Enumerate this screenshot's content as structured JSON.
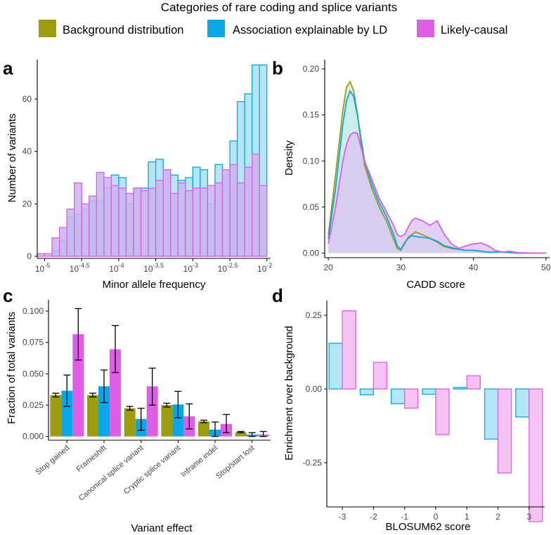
{
  "legend": {
    "title": "Categories of rare coding and splice variants",
    "entries": [
      {
        "key": "bg",
        "label": "Background distribution"
      },
      {
        "key": "ld",
        "label": "Association explainable by LD"
      },
      {
        "key": "lc",
        "label": "Likely-causal"
      }
    ]
  },
  "colors": {
    "bg": "#9c9c0e",
    "ld": "#0aa6e6",
    "lc": "#de5ee6",
    "ld_fill": "#b6e6f5",
    "lc_fill": "#f5c4f3",
    "lc_hist_fill": "#c9b4ee",
    "density_overlap": "#c7c9f3"
  },
  "chart_data": [
    {
      "panel": "a",
      "type": "histogram",
      "xlabel": "Minor allele frequency",
      "ylabel": "Number of variants",
      "xscale": "log10",
      "xlim": [
        -5.1,
        -1.95
      ],
      "ylim": [
        0,
        75
      ],
      "bin_width_log10": 0.1,
      "bin_start_log10": -5.1,
      "x_ticks": [
        {
          "value": -5,
          "base": "10",
          "exp": "-5"
        },
        {
          "value": -4.5,
          "base": "10",
          "exp": "-4.5"
        },
        {
          "value": -4,
          "base": "10",
          "exp": "-4"
        },
        {
          "value": -3.5,
          "base": "10",
          "exp": "-3.5"
        },
        {
          "value": -3,
          "base": "10",
          "exp": "-3"
        },
        {
          "value": -2.5,
          "base": "10",
          "exp": "-2.5"
        },
        {
          "value": -2,
          "base": "10",
          "exp": "-2"
        }
      ],
      "y_ticks": [
        0,
        20,
        40,
        60
      ],
      "series": [
        {
          "key": "ld",
          "name": "Association explainable by LD",
          "values": [
            0,
            0,
            2,
            6,
            15,
            16,
            18,
            21,
            21,
            26,
            31,
            30,
            20,
            26,
            26,
            36,
            37,
            33,
            31,
            29,
            30,
            34,
            33,
            20,
            35,
            31,
            44,
            59,
            62,
            73,
            73,
            0
          ]
        },
        {
          "key": "lc",
          "name": "Likely-causal",
          "values": [
            1,
            1,
            7,
            11,
            18,
            28,
            20,
            23,
            32,
            30,
            27,
            26,
            24,
            26,
            25,
            26,
            29,
            33,
            24,
            28,
            25,
            26,
            26,
            27,
            28,
            33,
            35,
            28,
            34,
            39,
            27,
            0
          ]
        }
      ]
    },
    {
      "panel": "b",
      "type": "density",
      "xlabel": "CADD score",
      "ylabel": "Density",
      "xlim": [
        19.5,
        50.5
      ],
      "ylim": [
        -0.005,
        0.21
      ],
      "x_ticks": [
        20,
        30,
        40,
        50
      ],
      "y_ticks": [
        "0.00",
        "0.05",
        "0.10",
        "0.15",
        "0.20"
      ],
      "x": [
        20,
        21,
        22,
        22.5,
        23,
        23.5,
        24,
        24.5,
        25,
        26,
        27,
        28,
        29,
        29.5,
        30,
        30.5,
        31,
        31.5,
        32,
        33,
        34,
        35,
        36,
        37,
        38,
        39,
        40,
        41,
        42,
        43,
        44,
        45,
        46,
        48,
        50
      ],
      "series": [
        {
          "key": "bg",
          "name": "Background distribution",
          "values": [
            0.02,
            0.085,
            0.155,
            0.18,
            0.186,
            0.176,
            0.152,
            0.12,
            0.095,
            0.07,
            0.05,
            0.035,
            0.015,
            0.005,
            0.003,
            0.01,
            0.017,
            0.02,
            0.023,
            0.02,
            0.016,
            0.012,
            0.007,
            0.005,
            0.004,
            0.003,
            0.003,
            0.002,
            0.001,
            0.001,
            0.001,
            0.0005,
            0.0,
            0.0,
            0.0
          ]
        },
        {
          "key": "ld",
          "name": "Association explainable by LD",
          "values": [
            0.015,
            0.07,
            0.14,
            0.165,
            0.176,
            0.17,
            0.15,
            0.125,
            0.1,
            0.075,
            0.055,
            0.04,
            0.02,
            0.008,
            0.004,
            0.011,
            0.016,
            0.019,
            0.018,
            0.017,
            0.016,
            0.013,
            0.008,
            0.006,
            0.004,
            0.003,
            0.003,
            0.002,
            0.001,
            0.001,
            0.001,
            0.0005,
            0.0,
            0.0,
            0.0
          ]
        },
        {
          "key": "lc",
          "name": "Likely-causal",
          "values": [
            0.01,
            0.05,
            0.1,
            0.118,
            0.128,
            0.131,
            0.13,
            0.115,
            0.1,
            0.08,
            0.06,
            0.045,
            0.03,
            0.02,
            0.018,
            0.02,
            0.028,
            0.035,
            0.038,
            0.035,
            0.03,
            0.035,
            0.02,
            0.01,
            0.005,
            0.008,
            0.01,
            0.011,
            0.008,
            0.003,
            0.001,
            0.002,
            0.0005,
            0.0,
            0.0
          ]
        }
      ]
    },
    {
      "panel": "c",
      "type": "bar",
      "xlabel": "Variant effect",
      "ylabel": "Fraction of total variants",
      "ylim": [
        -0.003,
        0.109
      ],
      "y_ticks": [
        "0.000",
        "0.025",
        "0.050",
        "0.075",
        "0.100"
      ],
      "categories": [
        "Stop gained",
        "Frameshift",
        "Canonical splice variant",
        "Cryptic splice variant",
        "Inframe indel",
        "Stop/start lost"
      ],
      "series": [
        {
          "key": "bg",
          "name": "Background distribution",
          "values": [
            0.033,
            0.033,
            0.0225,
            0.025,
            0.012,
            0.0035
          ],
          "err_low": [
            0.0315,
            0.0315,
            0.021,
            0.0235,
            0.011,
            0.003
          ],
          "err_high": [
            0.0345,
            0.0345,
            0.024,
            0.0265,
            0.013,
            0.004
          ]
        },
        {
          "key": "ld",
          "name": "Association explainable by LD",
          "values": [
            0.0365,
            0.04,
            0.014,
            0.0255,
            0.0055,
            0.0015
          ],
          "err_low": [
            0.024,
            0.027,
            0.005,
            0.015,
            0.0,
            0.0
          ],
          "err_high": [
            0.049,
            0.053,
            0.0225,
            0.036,
            0.0115,
            0.003
          ]
        },
        {
          "key": "lc",
          "name": "Likely-causal",
          "values": [
            0.0815,
            0.0695,
            0.04,
            0.016,
            0.01,
            0.0015
          ],
          "err_low": [
            0.061,
            0.051,
            0.025,
            0.006,
            0.003,
            0.0
          ],
          "err_high": [
            0.102,
            0.0885,
            0.0545,
            0.026,
            0.0175,
            0.004
          ]
        }
      ]
    },
    {
      "panel": "d",
      "type": "bar",
      "xlabel": "BLOSUM62 score",
      "ylabel": "Enrichment over background",
      "ylim": [
        -0.4,
        0.3
      ],
      "y_ticks": [
        "0.25",
        "0.00",
        "-0.25"
      ],
      "y_tick_values": [
        0.25,
        0,
        -0.25
      ],
      "categories": [
        "-3",
        "-2",
        "-1",
        "0",
        "1",
        "2",
        "3"
      ],
      "series": [
        {
          "key": "ld",
          "name": "Association explainable by LD",
          "values": [
            0.155,
            -0.02,
            -0.05,
            -0.018,
            0.005,
            -0.17,
            -0.095
          ]
        },
        {
          "key": "lc",
          "name": "Likely-causal",
          "values": [
            0.265,
            0.09,
            -0.065,
            -0.155,
            0.045,
            -0.285,
            -0.45
          ]
        }
      ]
    }
  ],
  "panel_labels": {
    "a": "a",
    "b": "b",
    "c": "c",
    "d": "d"
  }
}
